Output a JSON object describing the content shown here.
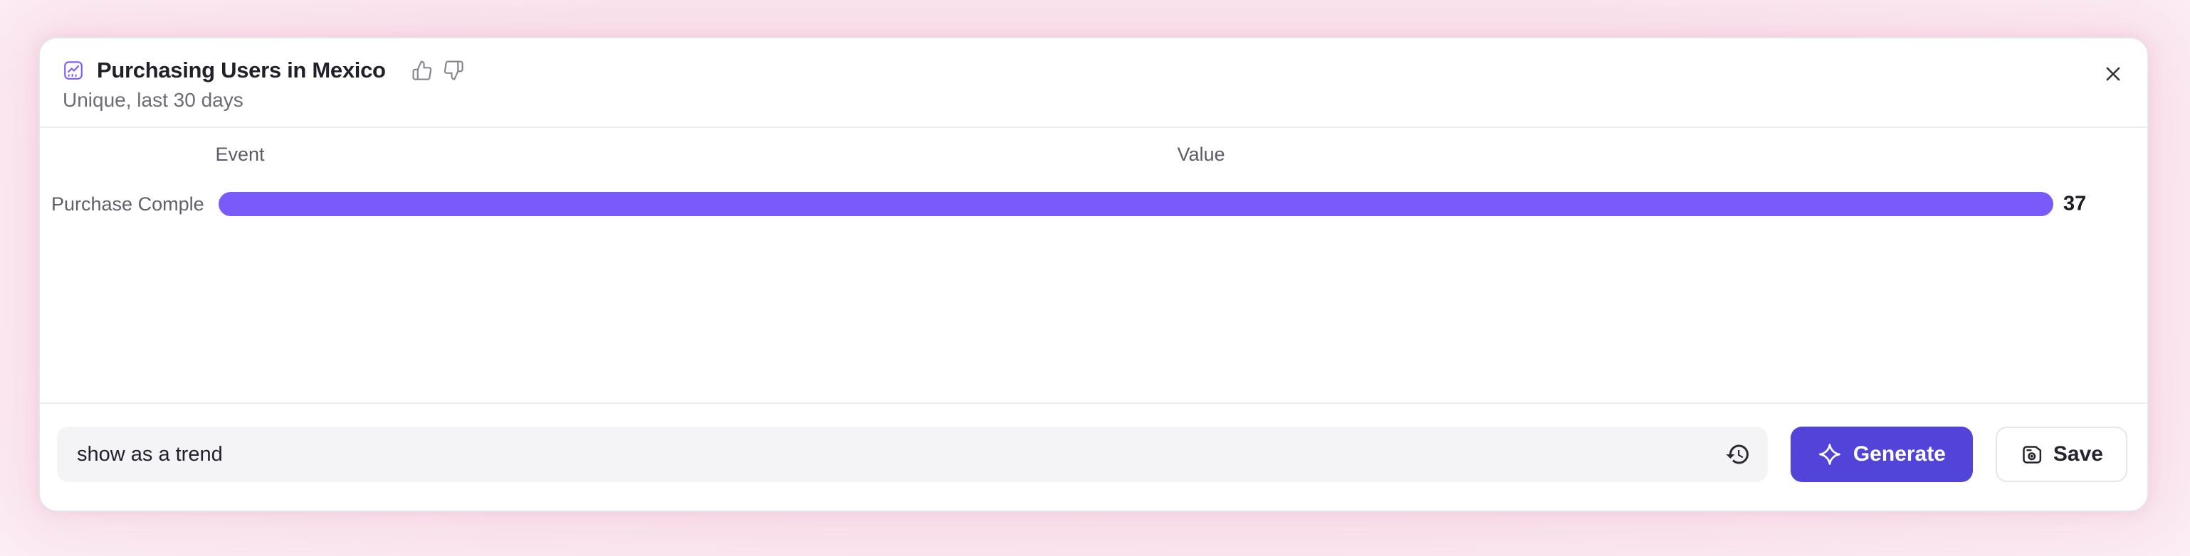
{
  "card": {
    "title": "Purchasing Users in Mexico",
    "subtitle": "Unique, last 30 days"
  },
  "icons": {
    "title_icon": "line-chart-icon",
    "feedback_positive": "thumbs-up-icon",
    "feedback_negative": "thumbs-down-icon",
    "close": "close-icon",
    "prompt_history": "history-icon",
    "generate": "sparkle-icon",
    "save": "save-disk-icon"
  },
  "table": {
    "columns": [
      "Event",
      "Value"
    ]
  },
  "chart_data": {
    "type": "bar",
    "orientation": "horizontal",
    "title": "Purchasing Users in Mexico",
    "subtitle": "Unique, last 30 days",
    "categories": [
      "Purchase Completed..."
    ],
    "values": [
      37
    ],
    "category_axis_label": "Event",
    "value_axis_label": "Value",
    "xlim": [
      0,
      37
    ],
    "value_labels_shown": true,
    "legend": "none",
    "grid": "off"
  },
  "prompt_bar": {
    "input_value": "show as a trend",
    "generate_label": "Generate",
    "save_label": "Save"
  },
  "colors": {
    "bar_purple": "#7A5AFA",
    "generate_indigo": "#5243D9",
    "title_icon_purple": "#7B5BFB",
    "page_glow_pink": "#F6D7E3"
  }
}
